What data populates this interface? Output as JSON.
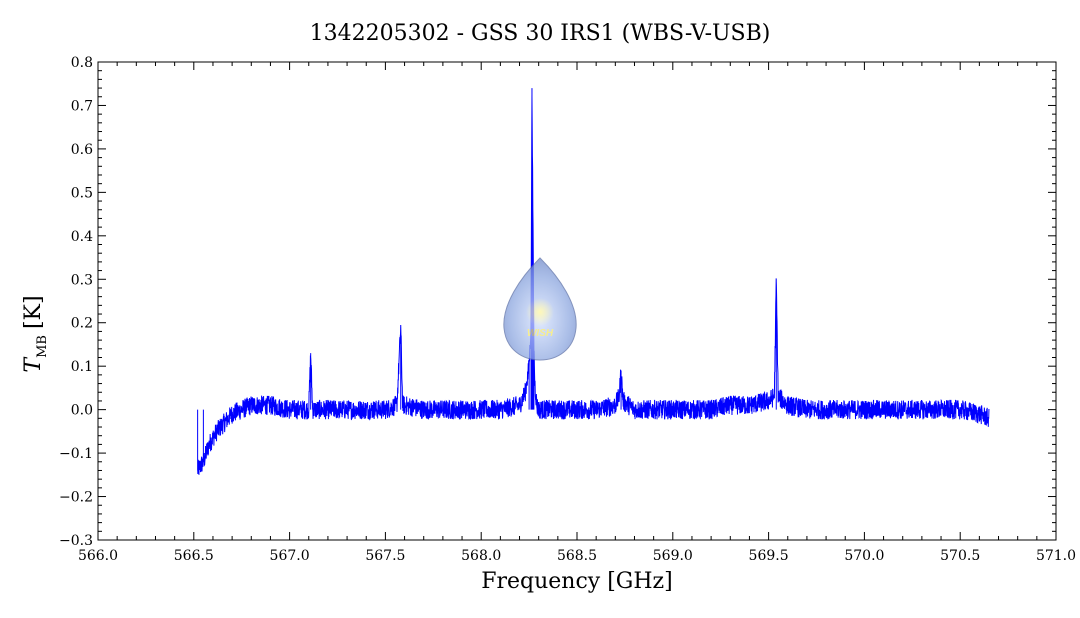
{
  "chart_data": {
    "type": "line",
    "title": "1342205302 - GSS 30 IRS1 (WBS-V-USB)",
    "xlabel": "Frequency [GHz]",
    "ylabel_main": "T",
    "ylabel_sub": "MB",
    "ylabel_unit": "[K]",
    "xlim": [
      566.0,
      571.0
    ],
    "ylim": [
      -0.3,
      0.8
    ],
    "x_ticks": [
      "566.0",
      "566.5",
      "567.0",
      "567.5",
      "568.0",
      "568.5",
      "569.0",
      "569.5",
      "570.0",
      "570.5",
      "571.0"
    ],
    "y_ticks": [
      "−0.3",
      "−0.2",
      "−0.1",
      "0.0",
      "0.1",
      "0.2",
      "0.3",
      "0.4",
      "0.5",
      "0.6",
      "0.7",
      "0.8"
    ],
    "x_tick_values": [
      566.0,
      566.5,
      567.0,
      567.5,
      568.0,
      568.5,
      569.0,
      569.5,
      570.0,
      570.5,
      571.0
    ],
    "y_tick_values": [
      -0.3,
      -0.2,
      -0.1,
      0.0,
      0.1,
      0.2,
      0.3,
      0.4,
      0.5,
      0.6,
      0.7,
      0.8
    ],
    "series": [
      {
        "color": "#0000ff",
        "x": [
          566.52,
          566.55,
          566.58,
          566.62,
          566.66,
          566.7,
          566.75,
          566.8,
          566.9,
          567.0,
          567.1,
          567.11,
          567.12,
          567.13,
          567.2,
          567.3,
          567.4,
          567.5,
          567.56,
          567.58,
          567.59,
          567.6,
          567.7,
          567.8,
          567.9,
          568.0,
          568.1,
          568.2,
          568.23,
          568.25,
          568.26,
          568.265,
          568.27,
          568.275,
          568.28,
          568.29,
          568.3,
          568.32,
          568.4,
          568.5,
          568.6,
          568.7,
          568.72,
          568.73,
          568.74,
          568.8,
          568.9,
          569.0,
          569.1,
          569.2,
          569.3,
          569.4,
          569.5,
          569.53,
          569.54,
          569.55,
          569.6,
          569.7,
          569.8,
          569.9,
          570.0,
          570.1,
          570.2,
          570.3,
          570.4,
          570.5,
          570.6,
          570.65
        ],
        "y": [
          -0.14,
          -0.12,
          -0.08,
          -0.05,
          -0.03,
          -0.01,
          0.0,
          0.01,
          0.01,
          0.0,
          0.0,
          0.13,
          0.0,
          0.0,
          0.0,
          0.0,
          0.0,
          0.0,
          0.01,
          0.19,
          0.01,
          0.01,
          0.0,
          0.0,
          0.0,
          0.0,
          0.0,
          0.01,
          0.04,
          0.1,
          0.2,
          0.74,
          0.44,
          0.15,
          0.06,
          0.01,
          0.0,
          0.0,
          0.0,
          0.0,
          0.0,
          0.01,
          0.03,
          0.09,
          0.02,
          0.0,
          0.0,
          0.0,
          0.0,
          0.0,
          0.01,
          0.01,
          0.02,
          0.03,
          0.3,
          0.03,
          0.01,
          0.0,
          0.0,
          0.0,
          0.0,
          0.0,
          0.0,
          0.0,
          0.0,
          0.0,
          -0.01,
          -0.02
        ]
      }
    ],
    "grid": false,
    "legend": "none"
  }
}
